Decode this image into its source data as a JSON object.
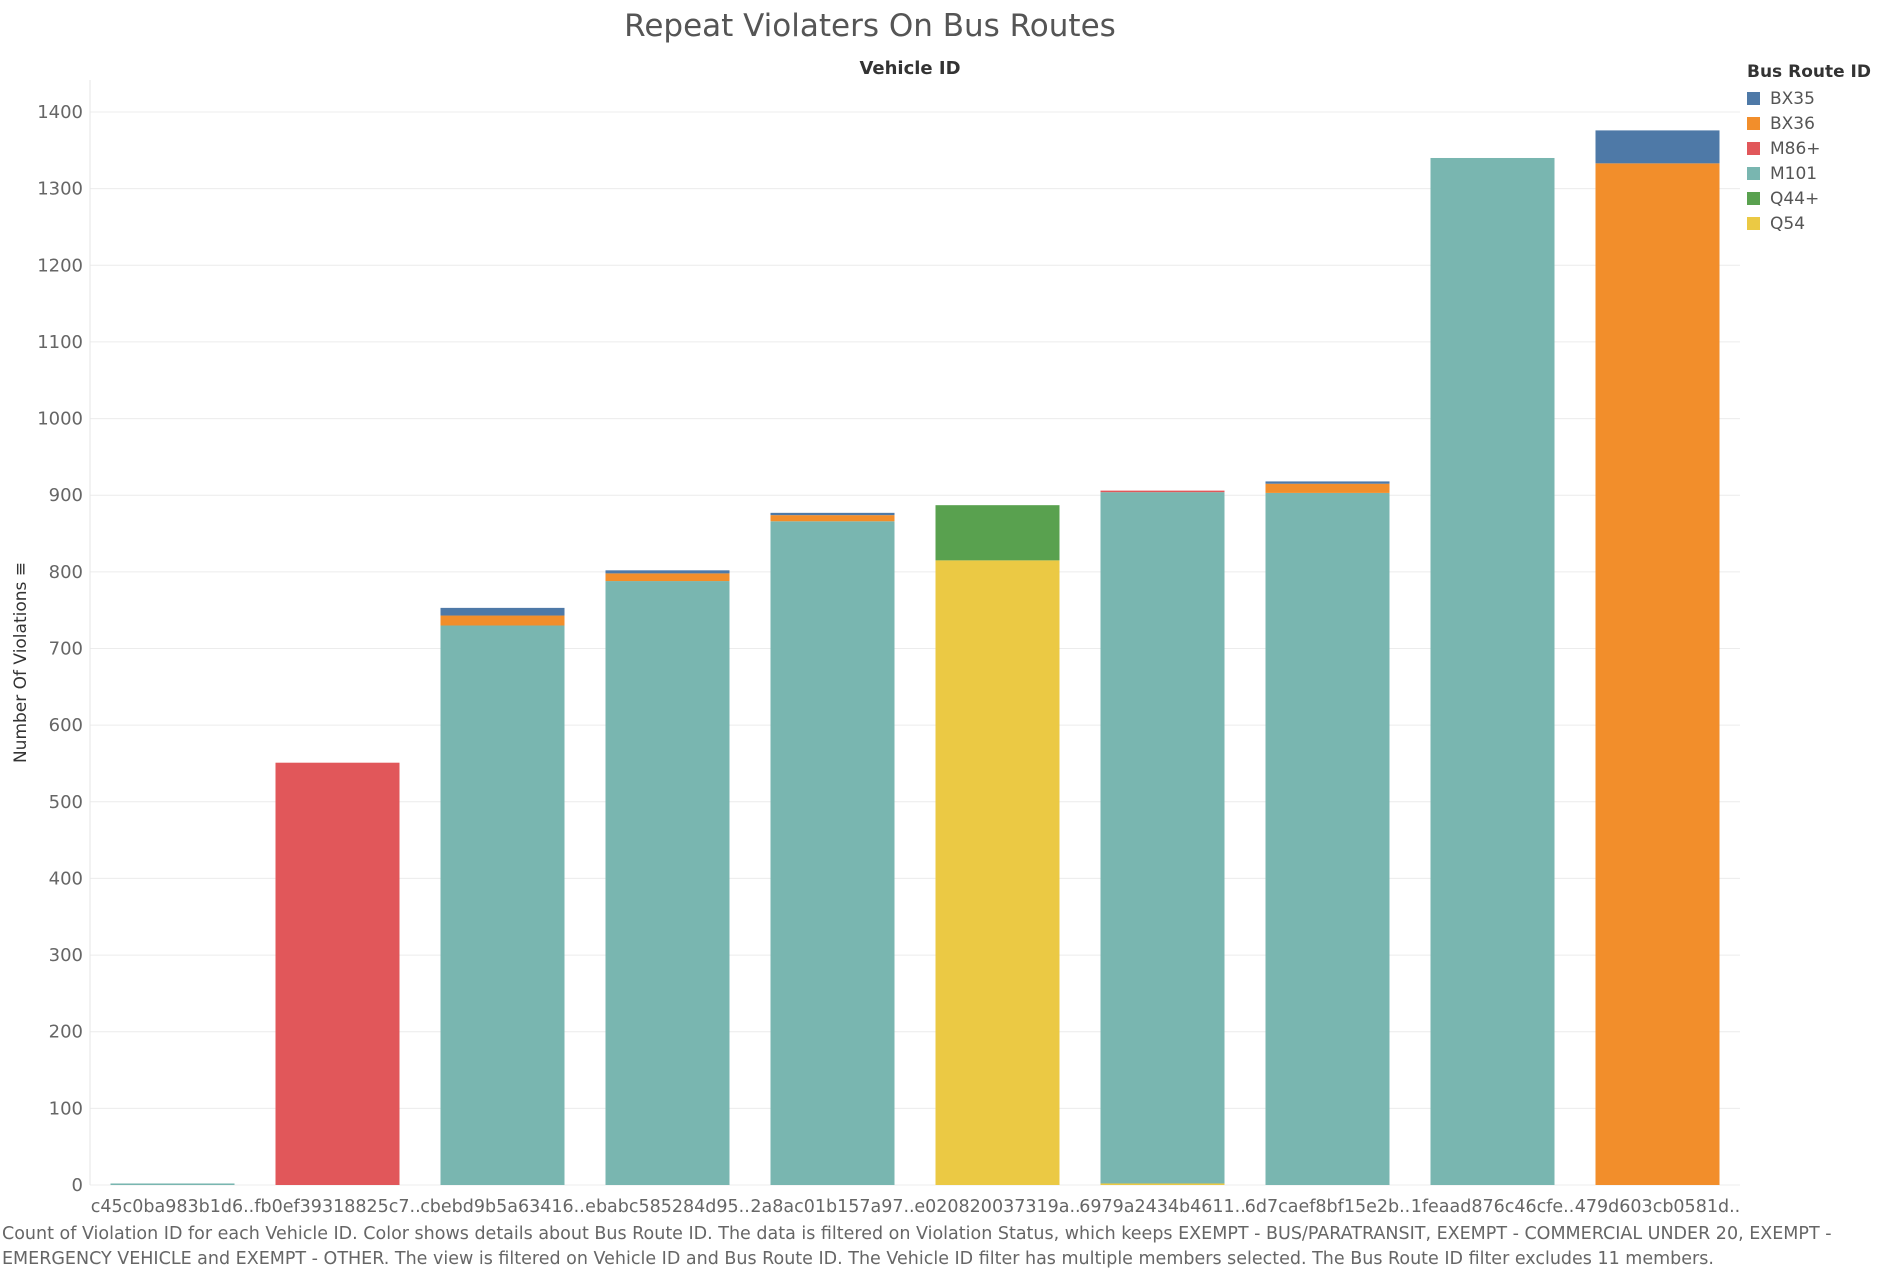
{
  "chart_data": {
    "type": "bar",
    "stacked": true,
    "title": "Repeat Violaters On Bus Routes",
    "column_header": "Vehicle ID",
    "xlabel": "",
    "ylabel": "Number Of Violations ≡",
    "ylim": [
      0,
      1420
    ],
    "yticks": [
      0,
      100,
      200,
      300,
      400,
      500,
      600,
      700,
      800,
      900,
      1000,
      1100,
      1200,
      1300,
      1400
    ],
    "grid": true,
    "legend_title": "Bus Route ID",
    "legend_position": "top-right",
    "categories": [
      "c45c0ba983b1d6..",
      "fb0ef39318825c7..",
      "cbebd9b5a63416..",
      "ebabc585284d95..",
      "2a8ac01b157a97..",
      "e020820037319a..",
      "6979a2434b4611..",
      "6d7caef8bf15e2b..",
      "1feaad876c46cfe..",
      "479d603cb0581d.."
    ],
    "series": [
      {
        "name": "Q54",
        "color": "#EBC944",
        "values": [
          0,
          0,
          0,
          0,
          0,
          815,
          2,
          0,
          0,
          0
        ]
      },
      {
        "name": "M101",
        "color": "#79B6B0",
        "values": [
          2,
          0,
          730,
          788,
          866,
          0,
          902,
          903,
          1340,
          0
        ]
      },
      {
        "name": "M86+",
        "color": "#E1575A",
        "values": [
          0,
          551,
          0,
          0,
          0,
          0,
          2,
          0,
          0,
          0
        ]
      },
      {
        "name": "BX36",
        "color": "#F28E2B",
        "values": [
          0,
          0,
          13,
          10,
          8,
          0,
          0,
          12,
          0,
          1333
        ]
      },
      {
        "name": "BX35",
        "color": "#4E79A7",
        "values": [
          0,
          0,
          10,
          4,
          3,
          0,
          0,
          3,
          0,
          43
        ]
      },
      {
        "name": "Q44+",
        "color": "#59A14F",
        "values": [
          0,
          0,
          0,
          0,
          0,
          72,
          0,
          0,
          0,
          0
        ]
      }
    ],
    "legend_order": [
      "BX35",
      "BX36",
      "M86+",
      "M101",
      "Q44+",
      "Q54"
    ]
  },
  "footnote": "Count of Violation ID for each Vehicle ID.  Color shows details about Bus Route ID. The data is filtered on Violation Status, which keeps EXEMPT - BUS/PARATRANSIT, EXEMPT - COMMERCIAL UNDER 20, EXEMPT - EMERGENCY VEHICLE and EXEMPT - OTHER. The view is filtered on Vehicle ID and Bus Route ID. The Vehicle ID filter has multiple members selected. The Bus Route ID filter excludes 11 members."
}
